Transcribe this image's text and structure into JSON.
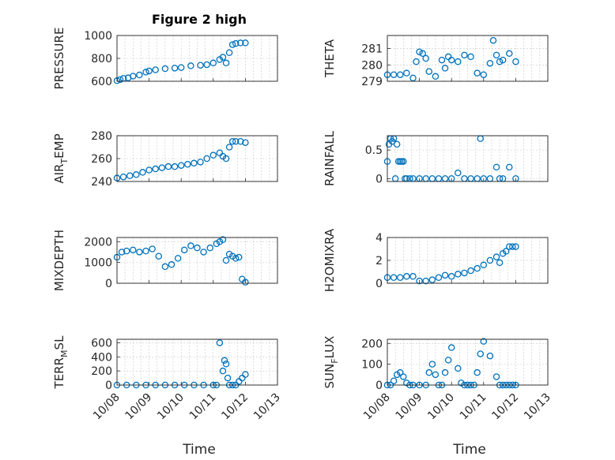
{
  "figure": {
    "title": "Figure 2 high",
    "xlabel": "Time"
  },
  "colors": {
    "marker": "#0072bd",
    "axes": "#262626",
    "grid": "#c8c8c8"
  },
  "chart_data": [
    {
      "type": "scatter",
      "ylabel": "PRESSURE",
      "ylim": [
        600,
        1000
      ],
      "yticks": [
        "600",
        "800",
        "1000"
      ],
      "yticks_v": [
        600,
        800,
        1000
      ],
      "xlim": [
        0,
        4
      ],
      "x_tick_labels": [],
      "x": [
        0,
        0.1,
        0.2,
        0.35,
        0.5,
        0.7,
        0.9,
        1.0,
        1.2,
        1.5,
        1.8,
        2.0,
        2.3,
        2.6,
        2.8,
        3.0,
        3.2,
        3.3,
        3.4,
        3.5,
        3.6,
        3.7,
        3.85,
        4.0
      ],
      "y": [
        605,
        615,
        625,
        630,
        645,
        655,
        680,
        690,
        700,
        710,
        715,
        720,
        735,
        740,
        745,
        760,
        790,
        810,
        760,
        850,
        920,
        930,
        935,
        935
      ]
    },
    {
      "type": "scatter",
      "ylabel": "THETA",
      "ylim": [
        279,
        281.8
      ],
      "yticks": [
        "279",
        "280",
        "281"
      ],
      "yticks_v": [
        279,
        280,
        281
      ],
      "xlim": [
        0,
        4
      ],
      "x_tick_labels": [],
      "x": [
        0,
        0.2,
        0.4,
        0.6,
        0.8,
        0.9,
        1.0,
        1.1,
        1.2,
        1.3,
        1.5,
        1.7,
        1.8,
        1.9,
        2.0,
        2.2,
        2.4,
        2.6,
        2.8,
        3.0,
        3.2,
        3.3,
        3.4,
        3.5,
        3.6,
        3.8,
        4.0
      ],
      "y": [
        279.4,
        279.4,
        279.4,
        279.5,
        279.2,
        280.2,
        280.8,
        280.7,
        280.4,
        279.6,
        279.3,
        280.3,
        279.8,
        280.5,
        280.3,
        280.2,
        280.6,
        280.5,
        279.5,
        279.4,
        280.1,
        281.5,
        280.6,
        280.2,
        280.3,
        280.7,
        280.2
      ]
    },
    {
      "type": "scatter",
      "ylabel": "AIR_TEMP",
      "ylim": [
        240,
        280
      ],
      "yticks": [
        "240",
        "260",
        "280"
      ],
      "yticks_v": [
        240,
        260,
        280
      ],
      "xlim": [
        0,
        4
      ],
      "x_tick_labels": [],
      "x": [
        0,
        0.2,
        0.4,
        0.6,
        0.8,
        1.0,
        1.2,
        1.4,
        1.6,
        1.8,
        2.0,
        2.2,
        2.4,
        2.6,
        2.8,
        3.0,
        3.2,
        3.3,
        3.4,
        3.5,
        3.6,
        3.7,
        3.85,
        4.0
      ],
      "y": [
        243,
        244,
        245,
        246,
        248,
        250,
        251,
        252,
        253,
        253,
        254,
        255,
        256,
        257,
        260,
        263,
        265,
        262,
        260,
        270,
        275,
        275,
        275,
        274
      ]
    },
    {
      "type": "scatter",
      "ylabel": "RAINFALL",
      "ylim": [
        -0.05,
        0.75
      ],
      "yticks": [
        "0",
        "0.5"
      ],
      "yticks_v": [
        0,
        0.5
      ],
      "xlim": [
        0,
        4
      ],
      "x_tick_labels": [],
      "x": [
        0,
        0.05,
        0.1,
        0.15,
        0.2,
        0.25,
        0.3,
        0.35,
        0.4,
        0.45,
        0.5,
        0.55,
        0.6,
        0.7,
        0.8,
        1.0,
        1.2,
        1.4,
        1.6,
        1.8,
        2.0,
        2.2,
        2.4,
        2.6,
        2.8,
        2.9,
        3.0,
        3.2,
        3.4,
        3.5,
        3.6,
        3.8,
        4.0
      ],
      "y": [
        0.3,
        0.6,
        0.7,
        0.65,
        0.7,
        0.0,
        0.6,
        0.3,
        0.3,
        0.3,
        0.3,
        0.0,
        0.0,
        0.0,
        0.0,
        0.0,
        0.0,
        0.0,
        0.0,
        0.0,
        0.0,
        0.1,
        0.0,
        0.0,
        0.0,
        0.7,
        0.0,
        0.0,
        0.2,
        0.0,
        0.0,
        0.2,
        0.0
      ]
    },
    {
      "type": "scatter",
      "ylabel": "MIXDEPTH",
      "ylim": [
        0,
        2200
      ],
      "yticks": [
        "0",
        "1000",
        "2000"
      ],
      "yticks_v": [
        0,
        1000,
        2000
      ],
      "xlim": [
        0,
        4
      ],
      "x_tick_labels": [],
      "x": [
        0,
        0.15,
        0.3,
        0.5,
        0.7,
        0.9,
        1.1,
        1.3,
        1.5,
        1.7,
        1.9,
        2.1,
        2.3,
        2.5,
        2.7,
        2.9,
        3.1,
        3.2,
        3.3,
        3.4,
        3.5,
        3.6,
        3.7,
        3.8,
        3.9,
        4.0
      ],
      "y": [
        1250,
        1500,
        1550,
        1600,
        1500,
        1550,
        1650,
        1300,
        800,
        900,
        1200,
        1600,
        1800,
        1700,
        1500,
        1700,
        1900,
        2000,
        2100,
        1100,
        1400,
        1300,
        1200,
        1250,
        200,
        50
      ]
    },
    {
      "type": "scatter",
      "ylabel": "H2OMIXRA",
      "ylim": [
        0,
        4
      ],
      "yticks": [
        "0",
        "2",
        "4"
      ],
      "yticks_v": [
        0,
        2,
        4
      ],
      "xlim": [
        0,
        4
      ],
      "x_tick_labels": [],
      "x": [
        0,
        0.2,
        0.4,
        0.6,
        0.8,
        1.0,
        1.2,
        1.4,
        1.6,
        1.8,
        2.0,
        2.2,
        2.4,
        2.6,
        2.8,
        3.0,
        3.2,
        3.4,
        3.5,
        3.6,
        3.7,
        3.8,
        3.9,
        4.0
      ],
      "y": [
        0.5,
        0.5,
        0.5,
        0.6,
        0.6,
        0.2,
        0.2,
        0.3,
        0.5,
        0.7,
        0.6,
        0.8,
        0.9,
        1.1,
        1.3,
        1.6,
        2.0,
        2.3,
        1.8,
        2.6,
        2.8,
        3.2,
        3.2,
        3.2
      ]
    },
    {
      "type": "scatter",
      "ylabel": "TERR_MSL",
      "ylim": [
        0,
        650
      ],
      "yticks": [
        "0",
        "200",
        "400",
        "600"
      ],
      "yticks_v": [
        0,
        200,
        400,
        600
      ],
      "xlim": [
        0,
        4
      ],
      "x_tick_labels": [
        "10/08",
        "10/09",
        "10/10",
        "10/11",
        "10/12",
        "10/13"
      ],
      "x": [
        0,
        0.3,
        0.6,
        0.9,
        1.2,
        1.5,
        1.8,
        2.1,
        2.4,
        2.7,
        3.0,
        3.1,
        3.2,
        3.3,
        3.35,
        3.4,
        3.45,
        3.5,
        3.6,
        3.7,
        3.8,
        3.9,
        4.0
      ],
      "y": [
        0,
        0,
        0,
        0,
        0,
        0,
        0,
        0,
        0,
        0,
        0,
        0,
        600,
        200,
        350,
        300,
        100,
        0,
        0,
        0,
        50,
        100,
        150
      ]
    },
    {
      "type": "scatter",
      "ylabel": "SUN_FLUX",
      "ylim": [
        0,
        220
      ],
      "yticks": [
        "0",
        "100",
        "200"
      ],
      "yticks_v": [
        0,
        100,
        200
      ],
      "xlim": [
        0,
        4
      ],
      "x_tick_labels": [
        "10/08",
        "10/09",
        "10/10",
        "10/11",
        "10/12",
        "10/13"
      ],
      "x": [
        0,
        0.1,
        0.2,
        0.3,
        0.4,
        0.5,
        0.6,
        0.7,
        0.8,
        1.0,
        1.2,
        1.3,
        1.4,
        1.5,
        1.6,
        1.7,
        1.8,
        1.9,
        2.0,
        2.2,
        2.3,
        2.4,
        2.5,
        2.6,
        2.7,
        2.8,
        2.9,
        3.0,
        3.2,
        3.4,
        3.5,
        3.6,
        3.7,
        3.8,
        3.9,
        4.0
      ],
      "y": [
        0,
        0,
        20,
        50,
        60,
        40,
        10,
        0,
        0,
        0,
        0,
        60,
        100,
        50,
        0,
        0,
        60,
        120,
        180,
        80,
        10,
        0,
        0,
        0,
        0,
        60,
        150,
        210,
        140,
        40,
        0,
        0,
        0,
        0,
        0,
        0
      ]
    }
  ]
}
